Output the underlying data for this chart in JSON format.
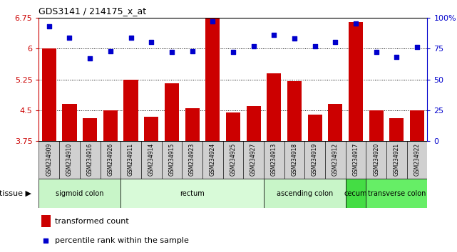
{
  "title": "GDS3141 / 214175_x_at",
  "samples": [
    "GSM234909",
    "GSM234910",
    "GSM234916",
    "GSM234926",
    "GSM234911",
    "GSM234914",
    "GSM234915",
    "GSM234923",
    "GSM234924",
    "GSM234925",
    "GSM234927",
    "GSM234913",
    "GSM234918",
    "GSM234919",
    "GSM234912",
    "GSM234917",
    "GSM234920",
    "GSM234921",
    "GSM234922"
  ],
  "bar_values": [
    6.0,
    4.65,
    4.3,
    4.5,
    5.25,
    4.35,
    5.15,
    4.55,
    6.75,
    4.45,
    4.6,
    5.4,
    5.2,
    4.4,
    4.65,
    6.65,
    4.5,
    4.3,
    4.5
  ],
  "dot_values": [
    93,
    84,
    67,
    73,
    84,
    80,
    72,
    73,
    97,
    72,
    77,
    86,
    83,
    77,
    80,
    95,
    72,
    68,
    76
  ],
  "bar_color": "#cc0000",
  "dot_color": "#0000cc",
  "ylim_left": [
    3.75,
    6.75
  ],
  "ylim_right": [
    0,
    100
  ],
  "yticks_left": [
    3.75,
    4.5,
    5.25,
    6.0,
    6.75
  ],
  "yticks_right": [
    0,
    25,
    50,
    75,
    100
  ],
  "hlines": [
    4.5,
    5.25,
    6.0
  ],
  "tissue_groups": [
    {
      "label": "sigmoid colon",
      "start": 0,
      "end": 4,
      "color": "#c8f5c8"
    },
    {
      "label": "rectum",
      "start": 4,
      "end": 11,
      "color": "#d8fad8"
    },
    {
      "label": "ascending colon",
      "start": 11,
      "end": 15,
      "color": "#c8f5c8"
    },
    {
      "label": "cecum",
      "start": 15,
      "end": 16,
      "color": "#44dd44"
    },
    {
      "label": "transverse colon",
      "start": 16,
      "end": 19,
      "color": "#66ee66"
    }
  ],
  "tissue_label": "tissue",
  "legend_bar": "transformed count",
  "legend_dot": "percentile rank within the sample",
  "bar_color_hex": "#cc0000",
  "dot_color_hex": "#0000cc",
  "tick_color_left": "#cc0000",
  "tick_color_right": "#0000cc",
  "tick_label_left": [
    "3.75",
    "4.5",
    "5.25",
    "6",
    "6.75"
  ],
  "tick_label_right": [
    "0",
    "25",
    "50",
    "75",
    "100%"
  ]
}
